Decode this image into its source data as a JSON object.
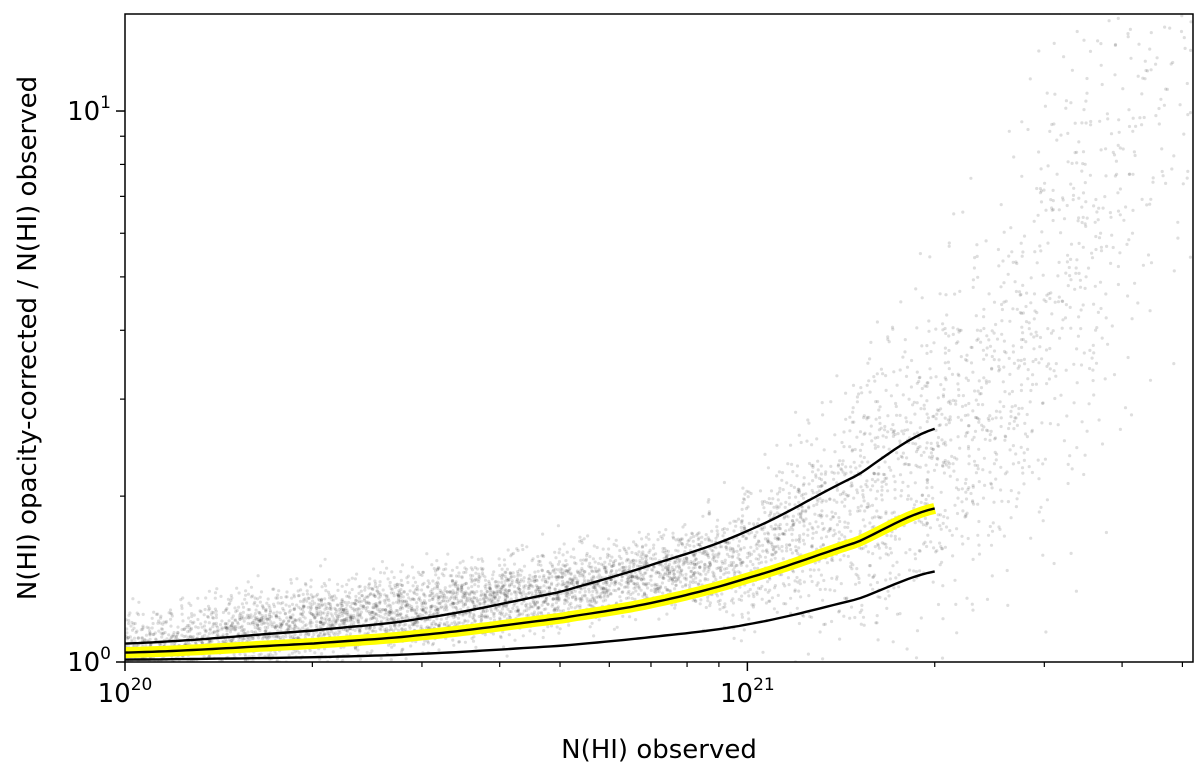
{
  "chart_data": {
    "type": "scatter",
    "title": "",
    "xlabel": "N(HI) observed",
    "ylabel": "N(HI) opacity-corrected / N(HI) observed",
    "xscale": "log",
    "yscale": "log",
    "xlim": [
      1e+20,
      5.2e+21
    ],
    "ylim": [
      1.0,
      15.0
    ],
    "grid": false,
    "legend": "none",
    "x_ticks": [
      {
        "value": 1e+20,
        "base": "10",
        "exp": "20"
      },
      {
        "value": 1e+21,
        "base": "10",
        "exp": "21"
      }
    ],
    "y_ticks": [
      {
        "value": 1,
        "base": "10",
        "exp": "0"
      },
      {
        "value": 10,
        "base": "10",
        "exp": "1"
      }
    ],
    "scatter_cloud": {
      "color": "#000000",
      "description_points": [
        {
          "x": 3e+20,
          "y": 1.25
        },
        {
          "x": 5e+20,
          "y": 1.35
        },
        {
          "x": 7e+20,
          "y": 1.45
        },
        {
          "x": 1e+21,
          "y": 1.55
        },
        {
          "x": 1.5e+21,
          "y": 1.9
        },
        {
          "x": 2e+21,
          "y": 2.3
        },
        {
          "x": 2.5e+21,
          "y": 3.0
        },
        {
          "x": 3e+21,
          "y": 4.0
        },
        {
          "x": 3.5e+21,
          "y": 5.5
        },
        {
          "x": 4e+21,
          "y": 8.0
        },
        {
          "x": 4.5e+21,
          "y": 12.0
        }
      ]
    },
    "series": [
      {
        "role": "upper envelope",
        "color": "#000000",
        "points": [
          {
            "x": 1e+20,
            "y": 1.08
          },
          {
            "x": 2e+20,
            "y": 1.14
          },
          {
            "x": 3e+20,
            "y": 1.2
          },
          {
            "x": 5e+20,
            "y": 1.34
          },
          {
            "x": 7e+20,
            "y": 1.5
          },
          {
            "x": 1e+21,
            "y": 1.73
          },
          {
            "x": 1.5e+21,
            "y": 2.18
          },
          {
            "x": 2e+21,
            "y": 2.65
          }
        ]
      },
      {
        "role": "best fit",
        "color": "#000000",
        "highlight": "#ffff00",
        "points": [
          {
            "x": 1e+20,
            "y": 1.04
          },
          {
            "x": 2e+20,
            "y": 1.08
          },
          {
            "x": 3e+20,
            "y": 1.12
          },
          {
            "x": 5e+20,
            "y": 1.2
          },
          {
            "x": 7e+20,
            "y": 1.28
          },
          {
            "x": 1e+21,
            "y": 1.42
          },
          {
            "x": 1.5e+21,
            "y": 1.65
          },
          {
            "x": 2e+21,
            "y": 1.9
          }
        ]
      },
      {
        "role": "lower envelope",
        "color": "#000000",
        "points": [
          {
            "x": 1e+20,
            "y": 1.01
          },
          {
            "x": 2e+20,
            "y": 1.02
          },
          {
            "x": 3e+20,
            "y": 1.035
          },
          {
            "x": 5e+20,
            "y": 1.07
          },
          {
            "x": 7e+20,
            "y": 1.11
          },
          {
            "x": 1e+21,
            "y": 1.17
          },
          {
            "x": 1.5e+21,
            "y": 1.3
          },
          {
            "x": 2e+21,
            "y": 1.46
          }
        ]
      }
    ]
  }
}
